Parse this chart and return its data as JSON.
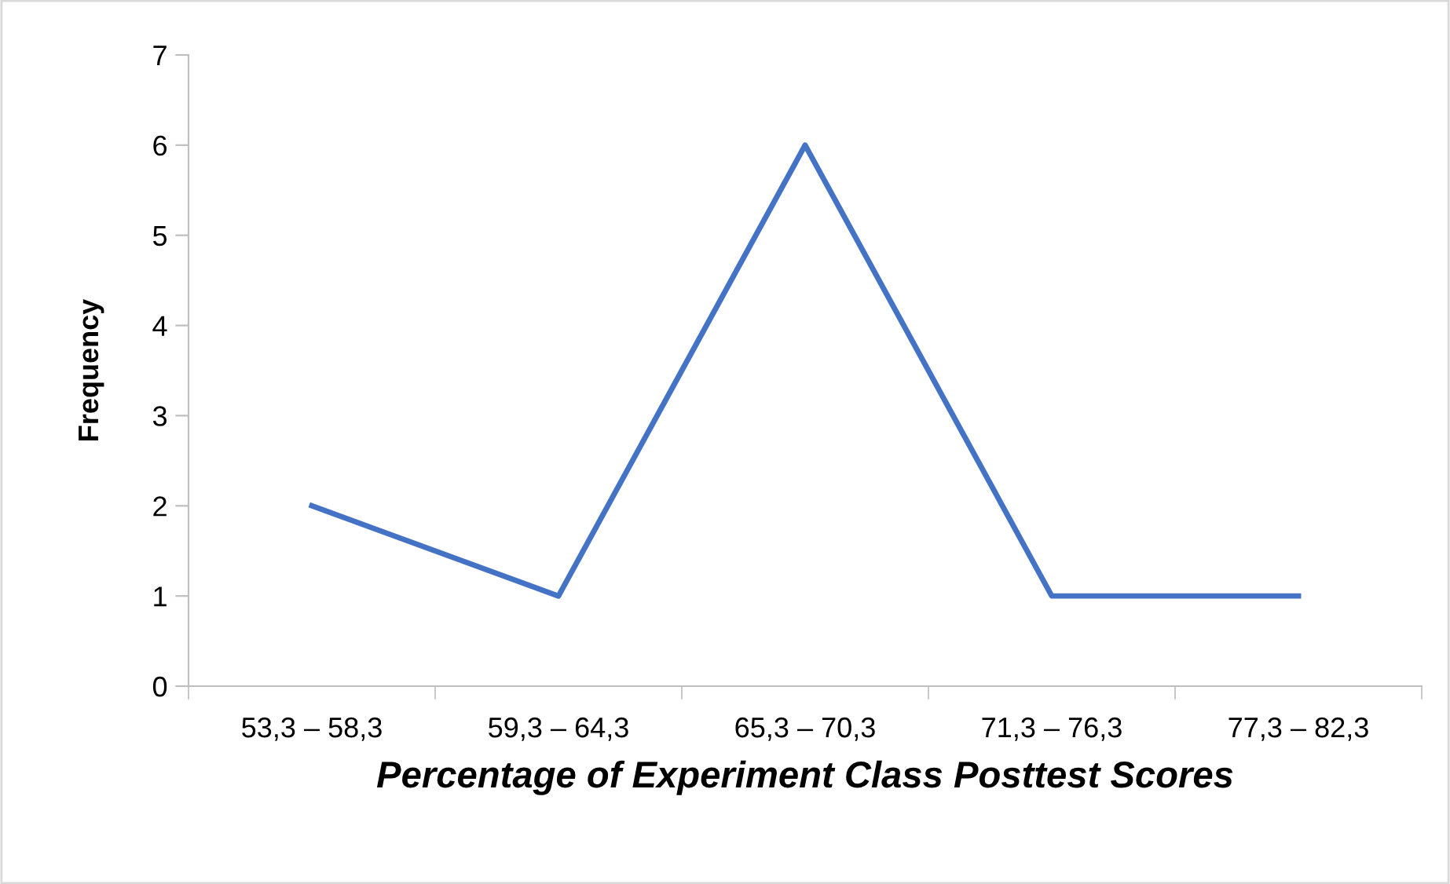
{
  "chart_data": {
    "type": "line",
    "xlabel": "Percentage of Experiment Class Posttest Scores",
    "ylabel": "Frequency",
    "categories": [
      "53,3 – 58,3",
      "59,3 – 64,3",
      "65,3 – 70,3",
      "71,3 – 76,3",
      "77,3 – 82,3"
    ],
    "series": [
      {
        "color": "#4472c4",
        "values": [
          2,
          1,
          6,
          1,
          1
        ]
      }
    ],
    "ylim": [
      0,
      7
    ],
    "yticks": [
      0,
      1,
      2,
      3,
      4,
      5,
      6,
      7
    ],
    "grid": false,
    "legend": false,
    "marker": "none",
    "line_style": "solid"
  }
}
